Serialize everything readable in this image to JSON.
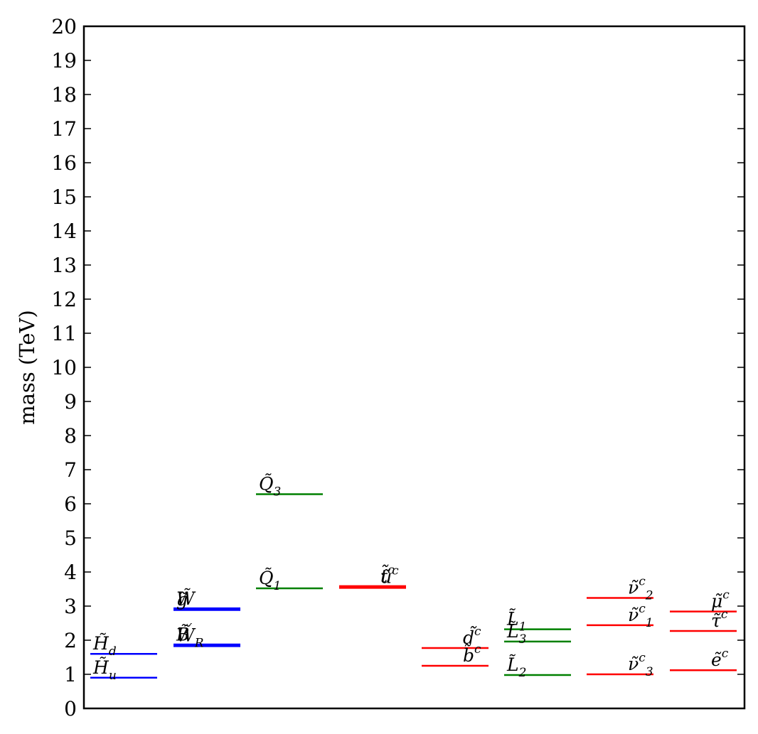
{
  "chart_data": {
    "type": "spectrum",
    "title": "",
    "xlabel": "",
    "ylabel": "mass (TeV)",
    "ylim": [
      0,
      20
    ],
    "yticks": [
      "0",
      "1",
      "2",
      "3",
      "4",
      "5",
      "6",
      "7",
      "8",
      "9",
      "10",
      "11",
      "12",
      "13",
      "14",
      "15",
      "16",
      "17",
      "18",
      "19",
      "20"
    ],
    "grid": false,
    "legend": "none",
    "colors": {
      "blue": "#0000ff",
      "green": "#008000",
      "red": "#ff0000",
      "axis": "#000000"
    },
    "levels": [
      {
        "column": 0,
        "mass": 1.6,
        "color": "blue",
        "label": "H̃",
        "sub": "d",
        "sup": "",
        "width": 1
      },
      {
        "column": 0,
        "mass": 0.9,
        "color": "blue",
        "label": "H̃",
        "sub": "u",
        "sup": "",
        "width": 1
      },
      {
        "column": 1,
        "mass": 2.92,
        "color": "blue",
        "label": "W̃",
        "sub": "",
        "sup": "",
        "width": 2
      },
      {
        "column": 1,
        "mass": 2.9,
        "color": "blue",
        "label": "g̃",
        "sub": "",
        "sup": "",
        "width": 2
      },
      {
        "column": 1,
        "mass": 1.86,
        "color": "blue",
        "label": "B̃",
        "sub": "",
        "sup": "′",
        "width": 2
      },
      {
        "column": 1,
        "mass": 1.84,
        "color": "blue",
        "label": "W̃",
        "sub": "R",
        "sup": "",
        "width": 2
      },
      {
        "column": 2,
        "mass": 6.28,
        "color": "green",
        "label": "Q̃",
        "sub": "3",
        "sup": "",
        "width": 1
      },
      {
        "column": 2,
        "mass": 3.52,
        "color": "green",
        "label": "Q̃",
        "sub": "1",
        "sup": "",
        "width": 1
      },
      {
        "column": 3,
        "mass": 3.57,
        "color": "red",
        "label": "t̃",
        "sub": "",
        "sup": "c",
        "width": 2
      },
      {
        "column": 3,
        "mass": 3.55,
        "color": "red",
        "label": "ũ",
        "sub": "",
        "sup": "c",
        "width": 2
      },
      {
        "column": 4,
        "mass": 1.77,
        "color": "red",
        "label": "d̃",
        "sub": "",
        "sup": "c",
        "width": 1
      },
      {
        "column": 4,
        "mass": 1.25,
        "color": "red",
        "label": "b̃",
        "sub": "",
        "sup": "c",
        "width": 1
      },
      {
        "column": 5,
        "mass": 2.32,
        "color": "green",
        "label": "L̃",
        "sub": "1",
        "sup": "",
        "width": 1
      },
      {
        "column": 5,
        "mass": 1.96,
        "color": "green",
        "label": "L̃",
        "sub": "3",
        "sup": "",
        "width": 1
      },
      {
        "column": 5,
        "mass": 0.98,
        "color": "green",
        "label": "L̃",
        "sub": "2",
        "sup": "",
        "width": 1
      },
      {
        "column": 6,
        "mass": 3.24,
        "color": "red",
        "label": "ν̃",
        "sub": "2",
        "sup": "c",
        "width": 1
      },
      {
        "column": 6,
        "mass": 2.44,
        "color": "red",
        "label": "ν̃",
        "sub": "1",
        "sup": "c",
        "width": 1
      },
      {
        "column": 6,
        "mass": 1.0,
        "color": "red",
        "label": "ν̃",
        "sub": "3",
        "sup": "c",
        "width": 1
      },
      {
        "column": 7,
        "mass": 2.84,
        "color": "red",
        "label": "μ̃",
        "sub": "",
        "sup": "c",
        "width": 1
      },
      {
        "column": 7,
        "mass": 2.27,
        "color": "red",
        "label": "τ̃",
        "sub": "",
        "sup": "c",
        "width": 1
      },
      {
        "column": 7,
        "mass": 1.12,
        "color": "red",
        "label": "ẽ",
        "sub": "",
        "sup": "c",
        "width": 1
      }
    ]
  }
}
